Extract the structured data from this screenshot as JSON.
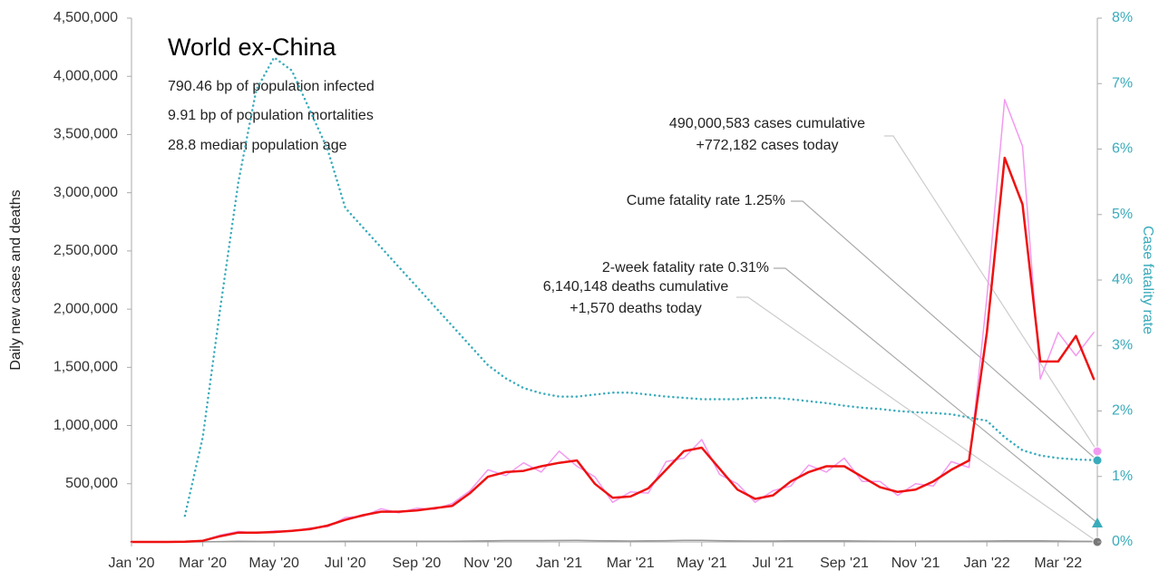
{
  "chart_data": {
    "type": "line",
    "info": {
      "title": "World ex-China",
      "lines": [
        "790.46 bp of population infected",
        "9.91 bp of population mortalities",
        "28.8 median population age"
      ]
    },
    "ylabel": "Daily new cases and deaths",
    "y2label": "Case fatality rate",
    "xlim": [
      0,
      27.1
    ],
    "xticks": [
      {
        "value": 0,
        "label": "Jan '20"
      },
      {
        "value": 2,
        "label": "Mar '20"
      },
      {
        "value": 4,
        "label": "May '20"
      },
      {
        "value": 6,
        "label": "Jul '20"
      },
      {
        "value": 8,
        "label": "Sep '20"
      },
      {
        "value": 10,
        "label": "Nov '20"
      },
      {
        "value": 12,
        "label": "Jan '21"
      },
      {
        "value": 14,
        "label": "Mar '21"
      },
      {
        "value": 16,
        "label": "May '21"
      },
      {
        "value": 18,
        "label": "Jul '21"
      },
      {
        "value": 20,
        "label": "Sep '21"
      },
      {
        "value": 22,
        "label": "Nov '21"
      },
      {
        "value": 24,
        "label": "Jan '22"
      },
      {
        "value": 26,
        "label": "Mar '22"
      }
    ],
    "ylim": [
      0,
      4500000
    ],
    "yticks": [
      {
        "value": 500000,
        "label": "500,000"
      },
      {
        "value": 1000000,
        "label": "1,000,000"
      },
      {
        "value": 1500000,
        "label": "1,500,000"
      },
      {
        "value": 2000000,
        "label": "2,000,000"
      },
      {
        "value": 2500000,
        "label": "2,500,000"
      },
      {
        "value": 3000000,
        "label": "3,000,000"
      },
      {
        "value": 3500000,
        "label": "3,500,000"
      },
      {
        "value": 4000000,
        "label": "4,000,000"
      },
      {
        "value": 4500000,
        "label": "4,500,000"
      }
    ],
    "y2lim": [
      0,
      8
    ],
    "y2ticks": [
      {
        "value": 0,
        "label": "0%"
      },
      {
        "value": 1,
        "label": "1%"
      },
      {
        "value": 2,
        "label": "2%"
      },
      {
        "value": 3,
        "label": "3%"
      },
      {
        "value": 4,
        "label": "4%"
      },
      {
        "value": 5,
        "label": "5%"
      },
      {
        "value": 6,
        "label": "6%"
      },
      {
        "value": 7,
        "label": "7%"
      },
      {
        "value": 8,
        "label": "8%"
      }
    ],
    "x": [
      0,
      0.5,
      1,
      1.5,
      2,
      2.5,
      3,
      3.5,
      4,
      4.5,
      5,
      5.5,
      6,
      6.5,
      7,
      7.5,
      8,
      8.5,
      9,
      9.5,
      10,
      10.5,
      11,
      11.5,
      12,
      12.5,
      13,
      13.5,
      14,
      14.5,
      15,
      15.5,
      16,
      16.5,
      17,
      17.5,
      18,
      18.5,
      19,
      19.5,
      20,
      20.5,
      21,
      21.5,
      22,
      22.5,
      23,
      23.5,
      24,
      24.5,
      25,
      25.5,
      26,
      26.5,
      27
    ],
    "series": [
      {
        "color": "#f29af0",
        "linewidth": 1.5,
        "values": [
          0,
          0,
          0,
          3000,
          12000,
          60000,
          90000,
          75000,
          95000,
          90000,
          120000,
          130000,
          210000,
          220000,
          285000,
          250000,
          290000,
          280000,
          330000,
          440000,
          620000,
          570000,
          680000,
          600000,
          780000,
          650000,
          560000,
          340000,
          430000,
          420000,
          690000,
          720000,
          880000,
          580000,
          500000,
          340000,
          440000,
          480000,
          660000,
          600000,
          720000,
          520000,
          520000,
          400000,
          500000,
          480000,
          690000,
          640000,
          2100000,
          3800000,
          3400000,
          1400000,
          1800000,
          1600000,
          1800000
        ]
      },
      {
        "color": "#9a9a9a",
        "linewidth": 1.5,
        "values": [
          0,
          0,
          0,
          50,
          500,
          3000,
          6000,
          5000,
          4500,
          4500,
          4500,
          5000,
          5500,
          6000,
          6000,
          5500,
          5500,
          5500,
          6000,
          8000,
          10000,
          11500,
          11500,
          12000,
          12500,
          13000,
          11000,
          9000,
          8000,
          9000,
          11000,
          13000,
          13000,
          11000,
          8500,
          8000,
          8000,
          9000,
          10000,
          9500,
          9000,
          8000,
          7000,
          6500,
          6500,
          7000,
          7000,
          7000,
          7500,
          9000,
          10000,
          9000,
          7500,
          6000,
          5000
        ]
      },
      {
        "color": "#ee1111",
        "linewidth": 2.5,
        "values": [
          0,
          0,
          0,
          2000,
          10000,
          50000,
          80000,
          80000,
          85000,
          95000,
          110000,
          140000,
          190000,
          230000,
          260000,
          260000,
          270000,
          290000,
          310000,
          420000,
          560000,
          600000,
          610000,
          650000,
          680000,
          700000,
          500000,
          380000,
          390000,
          460000,
          620000,
          780000,
          810000,
          630000,
          450000,
          370000,
          400000,
          520000,
          600000,
          650000,
          650000,
          560000,
          470000,
          430000,
          450000,
          520000,
          620000,
          700000,
          1800000,
          3300000,
          2900000,
          1550000,
          1550000,
          1770000,
          1400000
        ]
      },
      {
        "color": "#3aabbb",
        "linewidth": 2.5,
        "linestyle": "dotted",
        "axis": "y2",
        "values": [
          null,
          null,
          null,
          0.4,
          1.6,
          3.6,
          5.5,
          6.9,
          7.4,
          7.2,
          6.6,
          6.0,
          5.1,
          4.8,
          4.5,
          4.2,
          3.9,
          3.6,
          3.3,
          3.0,
          2.7,
          2.5,
          2.35,
          2.27,
          2.22,
          2.22,
          2.25,
          2.28,
          2.28,
          2.25,
          2.22,
          2.2,
          2.18,
          2.18,
          2.18,
          2.2,
          2.2,
          2.18,
          2.15,
          2.12,
          2.08,
          2.05,
          2.03,
          2.0,
          1.98,
          1.97,
          1.95,
          1.9,
          1.85,
          1.6,
          1.4,
          1.32,
          1.28,
          1.26,
          1.25
        ]
      }
    ],
    "annotations": [
      {
        "lines": [
          "490,000,583 cases cumulative",
          "+772,182 cases today"
        ]
      },
      {
        "lines": [
          "Cume fatality rate 1.25%"
        ]
      },
      {
        "lines": [
          "2-week fatality rate 0.31%"
        ]
      },
      {
        "lines": [
          "6,140,148 deaths cumulative",
          "+1,570 deaths today"
        ]
      }
    ]
  }
}
